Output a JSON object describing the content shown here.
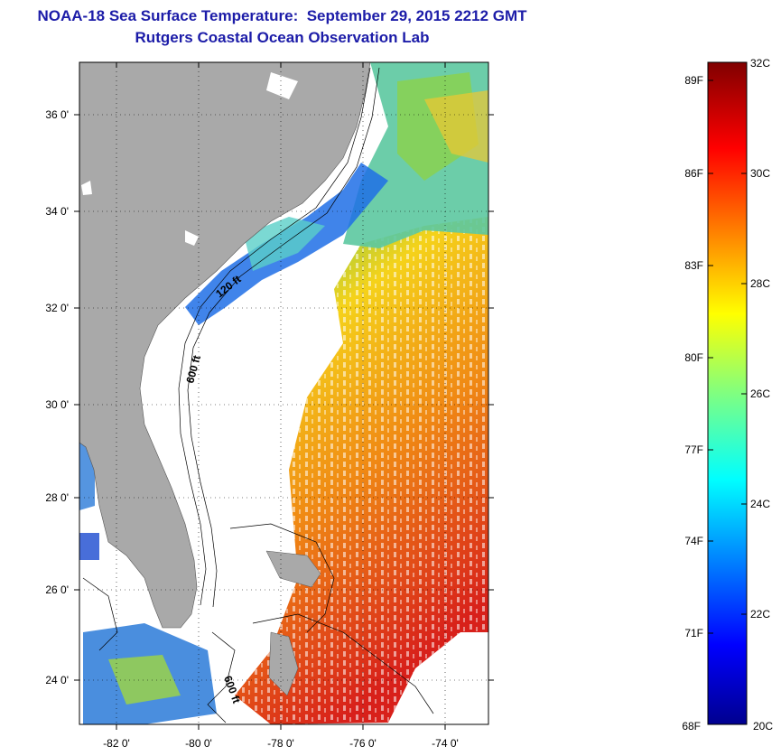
{
  "title": {
    "line1": "NOAA-18 Sea Surface Temperature:  September 29, 2015 2212 GMT",
    "line2": "Rutgers Coastal Ocean Observation Lab"
  },
  "map": {
    "lon_ticks": [
      "-82 0'",
      "-80 0'",
      "-78 0'",
      "-76 0'",
      "-74 0'"
    ],
    "lat_ticks": [
      "36 0'",
      "34 0'",
      "32 0'",
      "30 0'",
      "28 0'",
      "26 0'",
      "24 0'"
    ],
    "contour_labels": [
      "120 ft",
      "600 ft",
      "600 ft"
    ],
    "colors": {
      "land": "#a9a9a9",
      "cloud": "#ffffff"
    }
  },
  "colorbar": {
    "celsius_labels": [
      "32C",
      "30C",
      "28C",
      "26C",
      "24C",
      "22C",
      "20C"
    ],
    "fahrenheit_labels": [
      "89F",
      "86F",
      "83F",
      "80F",
      "77F",
      "74F",
      "71F",
      "68F"
    ],
    "range_c": [
      20,
      32
    ],
    "colormap": "jet"
  }
}
